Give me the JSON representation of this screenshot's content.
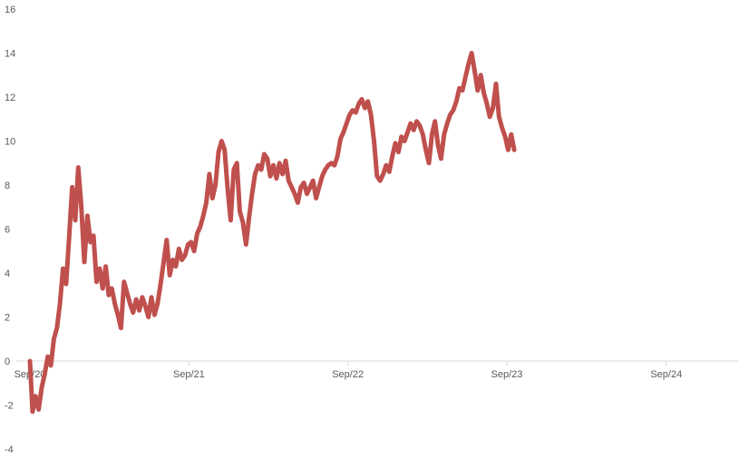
{
  "chart_data": {
    "type": "line",
    "title": "",
    "xlabel": "",
    "ylabel": "",
    "grid": false,
    "legend": "none",
    "ylim": [
      -4,
      16
    ],
    "xlim": [
      "2020-09-01",
      "2025-02-15"
    ],
    "y_ticks": [
      -4,
      -2,
      0,
      2,
      4,
      6,
      8,
      10,
      12,
      14,
      16
    ],
    "x_ticks": [
      {
        "label": "Sep/20",
        "date": "2020-09-01"
      },
      {
        "label": "Sep/21",
        "date": "2021-09-01"
      },
      {
        "label": "Sep/22",
        "date": "2022-09-01"
      },
      {
        "label": "Sep/23",
        "date": "2023-09-01"
      },
      {
        "label": "Sep/24",
        "date": "2024-09-01"
      }
    ],
    "series": [
      {
        "color": "#c0504d",
        "points": [
          [
            "2020-09-01",
            0.0
          ],
          [
            "2020-09-07",
            -2.3
          ],
          [
            "2020-09-14",
            -1.6
          ],
          [
            "2020-09-21",
            -2.2
          ],
          [
            "2020-09-28",
            -1.2
          ],
          [
            "2020-10-05",
            -0.6
          ],
          [
            "2020-10-12",
            0.2
          ],
          [
            "2020-10-19",
            -0.2
          ],
          [
            "2020-10-26",
            1.0
          ],
          [
            "2020-11-02",
            1.5
          ],
          [
            "2020-11-09",
            2.6
          ],
          [
            "2020-11-16",
            4.2
          ],
          [
            "2020-11-23",
            3.5
          ],
          [
            "2020-11-30",
            5.6
          ],
          [
            "2020-12-07",
            7.9
          ],
          [
            "2020-12-14",
            6.4
          ],
          [
            "2020-12-21",
            8.8
          ],
          [
            "2020-12-28",
            7.0
          ],
          [
            "2021-01-04",
            4.5
          ],
          [
            "2021-01-11",
            6.6
          ],
          [
            "2021-01-18",
            5.4
          ],
          [
            "2021-01-25",
            5.7
          ],
          [
            "2021-02-01",
            3.6
          ],
          [
            "2021-02-08",
            4.2
          ],
          [
            "2021-02-15",
            3.3
          ],
          [
            "2021-02-22",
            4.3
          ],
          [
            "2021-03-01",
            3.0
          ],
          [
            "2021-03-08",
            3.3
          ],
          [
            "2021-03-15",
            2.6
          ],
          [
            "2021-03-22",
            2.1
          ],
          [
            "2021-03-29",
            1.5
          ],
          [
            "2021-04-05",
            3.6
          ],
          [
            "2021-04-12",
            3.1
          ],
          [
            "2021-04-19",
            2.6
          ],
          [
            "2021-04-26",
            2.2
          ],
          [
            "2021-05-03",
            2.8
          ],
          [
            "2021-05-10",
            2.3
          ],
          [
            "2021-05-17",
            2.9
          ],
          [
            "2021-05-24",
            2.5
          ],
          [
            "2021-05-31",
            2.0
          ],
          [
            "2021-06-07",
            2.9
          ],
          [
            "2021-06-14",
            2.1
          ],
          [
            "2021-06-21",
            2.6
          ],
          [
            "2021-06-28",
            3.5
          ],
          [
            "2021-07-05",
            4.5
          ],
          [
            "2021-07-12",
            5.5
          ],
          [
            "2021-07-19",
            3.9
          ],
          [
            "2021-07-26",
            4.6
          ],
          [
            "2021-08-02",
            4.3
          ],
          [
            "2021-08-09",
            5.1
          ],
          [
            "2021-08-16",
            4.6
          ],
          [
            "2021-08-23",
            4.8
          ],
          [
            "2021-08-30",
            5.3
          ],
          [
            "2021-09-06",
            5.4
          ],
          [
            "2021-09-13",
            5.0
          ],
          [
            "2021-09-20",
            5.8
          ],
          [
            "2021-09-27",
            6.1
          ],
          [
            "2021-10-04",
            6.6
          ],
          [
            "2021-10-11",
            7.2
          ],
          [
            "2021-10-18",
            8.5
          ],
          [
            "2021-10-25",
            7.4
          ],
          [
            "2021-11-01",
            8.0
          ],
          [
            "2021-11-08",
            9.5
          ],
          [
            "2021-11-15",
            10.0
          ],
          [
            "2021-11-22",
            9.6
          ],
          [
            "2021-11-29",
            7.8
          ],
          [
            "2021-12-06",
            6.4
          ],
          [
            "2021-12-13",
            8.7
          ],
          [
            "2021-12-20",
            9.0
          ],
          [
            "2021-12-27",
            6.8
          ],
          [
            "2022-01-03",
            6.3
          ],
          [
            "2022-01-10",
            5.3
          ],
          [
            "2022-01-17",
            6.5
          ],
          [
            "2022-01-24",
            7.6
          ],
          [
            "2022-01-31",
            8.5
          ],
          [
            "2022-02-07",
            8.9
          ],
          [
            "2022-02-14",
            8.7
          ],
          [
            "2022-02-21",
            9.4
          ],
          [
            "2022-02-28",
            9.2
          ],
          [
            "2022-03-07",
            8.4
          ],
          [
            "2022-03-14",
            8.9
          ],
          [
            "2022-03-21",
            8.3
          ],
          [
            "2022-03-28",
            9.0
          ],
          [
            "2022-04-04",
            8.5
          ],
          [
            "2022-04-11",
            9.1
          ],
          [
            "2022-04-18",
            8.2
          ],
          [
            "2022-04-25",
            7.9
          ],
          [
            "2022-05-02",
            7.6
          ],
          [
            "2022-05-09",
            7.2
          ],
          [
            "2022-05-16",
            7.9
          ],
          [
            "2022-05-23",
            8.1
          ],
          [
            "2022-05-30",
            7.6
          ],
          [
            "2022-06-06",
            7.9
          ],
          [
            "2022-06-13",
            8.2
          ],
          [
            "2022-06-20",
            7.4
          ],
          [
            "2022-06-27",
            7.9
          ],
          [
            "2022-07-04",
            8.4
          ],
          [
            "2022-07-11",
            8.7
          ],
          [
            "2022-07-18",
            8.9
          ],
          [
            "2022-07-25",
            9.0
          ],
          [
            "2022-08-01",
            8.9
          ],
          [
            "2022-08-08",
            9.3
          ],
          [
            "2022-08-15",
            10.1
          ],
          [
            "2022-08-22",
            10.4
          ],
          [
            "2022-08-29",
            10.8
          ],
          [
            "2022-09-05",
            11.2
          ],
          [
            "2022-09-12",
            11.4
          ],
          [
            "2022-09-19",
            11.3
          ],
          [
            "2022-09-26",
            11.7
          ],
          [
            "2022-10-03",
            11.9
          ],
          [
            "2022-10-10",
            11.5
          ],
          [
            "2022-10-17",
            11.8
          ],
          [
            "2022-10-24",
            11.2
          ],
          [
            "2022-10-31",
            10.0
          ],
          [
            "2022-11-07",
            8.4
          ],
          [
            "2022-11-14",
            8.2
          ],
          [
            "2022-11-21",
            8.5
          ],
          [
            "2022-11-28",
            8.9
          ],
          [
            "2022-12-05",
            8.6
          ],
          [
            "2022-12-12",
            9.3
          ],
          [
            "2022-12-19",
            9.9
          ],
          [
            "2022-12-26",
            9.5
          ],
          [
            "2023-01-02",
            10.2
          ],
          [
            "2023-01-09",
            10.0
          ],
          [
            "2023-01-16",
            10.4
          ],
          [
            "2023-01-23",
            10.8
          ],
          [
            "2023-01-30",
            10.5
          ],
          [
            "2023-02-06",
            10.9
          ],
          [
            "2023-02-13",
            10.7
          ],
          [
            "2023-02-20",
            10.3
          ],
          [
            "2023-02-27",
            9.6
          ],
          [
            "2023-03-06",
            9.0
          ],
          [
            "2023-03-13",
            10.3
          ],
          [
            "2023-03-20",
            10.9
          ],
          [
            "2023-03-27",
            9.8
          ],
          [
            "2023-04-03",
            9.2
          ],
          [
            "2023-04-10",
            10.3
          ],
          [
            "2023-04-17",
            10.8
          ],
          [
            "2023-04-24",
            11.2
          ],
          [
            "2023-05-01",
            11.4
          ],
          [
            "2023-05-08",
            11.8
          ],
          [
            "2023-05-15",
            12.4
          ],
          [
            "2023-05-22",
            12.3
          ],
          [
            "2023-05-29",
            12.9
          ],
          [
            "2023-06-05",
            13.5
          ],
          [
            "2023-06-12",
            14.0
          ],
          [
            "2023-06-19",
            13.2
          ],
          [
            "2023-06-26",
            12.3
          ],
          [
            "2023-07-03",
            13.0
          ],
          [
            "2023-07-10",
            12.2
          ],
          [
            "2023-07-17",
            11.7
          ],
          [
            "2023-07-24",
            11.1
          ],
          [
            "2023-07-31",
            11.5
          ],
          [
            "2023-08-07",
            12.6
          ],
          [
            "2023-08-14",
            11.1
          ],
          [
            "2023-08-21",
            10.6
          ],
          [
            "2023-08-28",
            10.2
          ],
          [
            "2023-09-04",
            9.6
          ],
          [
            "2023-09-11",
            10.3
          ],
          [
            "2023-09-18",
            9.6
          ]
        ]
      }
    ]
  }
}
